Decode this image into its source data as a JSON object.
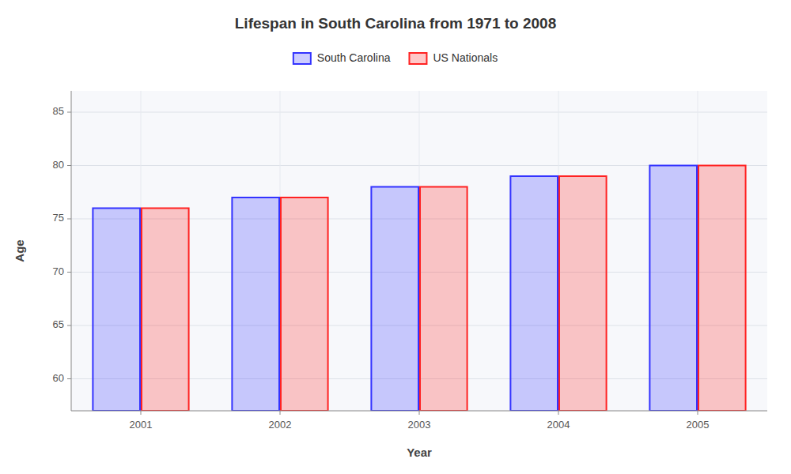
{
  "chart_data": {
    "type": "bar",
    "title": "Lifespan in South Carolina from 1971 to 2008",
    "xlabel": "Year",
    "ylabel": "Age",
    "categories": [
      "2001",
      "2002",
      "2003",
      "2004",
      "2005"
    ],
    "series": [
      {
        "name": "South Carolina",
        "color": "#3333ff",
        "values": [
          76,
          77,
          78,
          79,
          80
        ]
      },
      {
        "name": "US Nationals",
        "color": "#ff2222",
        "values": [
          76,
          77,
          78,
          79,
          80
        ]
      }
    ],
    "ylim": [
      57,
      87
    ],
    "yticks": [
      60,
      65,
      70,
      75,
      80,
      85
    ],
    "grid": true,
    "legend": "top"
  }
}
